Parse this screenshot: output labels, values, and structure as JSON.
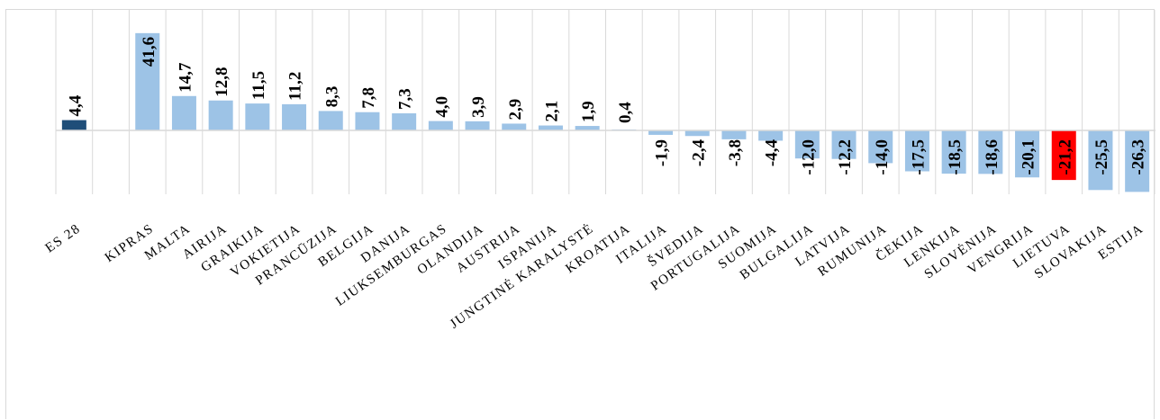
{
  "chart_data": {
    "type": "bar",
    "title": "",
    "xlabel": "",
    "ylabel": "",
    "ylim": [
      -30,
      45
    ],
    "grid": "vertical",
    "categories": [
      "ES 28",
      "",
      "KIPRAS",
      "MALTA",
      "AIRIJA",
      "GRAIKIJA",
      "VOKIETIJA",
      "PRANCŪZIJA",
      "BELGIJA",
      "DANIJA",
      "LIUKSEMBURGAS",
      "OLANDIJA",
      "AUSTRIJA",
      "ISPANIJA",
      "JUNGTINĖ KARALYSTĖ",
      "KROATIJA",
      "ITALIJA",
      "ŠVEDIJA",
      "PORTUGALIJA",
      "SUOMIJA",
      "BULGALIJA",
      "LATVIJA",
      "RUMUNIJA",
      "ČEKIJA",
      "LENKIJA",
      "SLOVĖNIJA",
      "VENGRIJA",
      "LIETUVA",
      "SLOVAKIJA",
      "ESTIJA"
    ],
    "values": [
      4.4,
      null,
      41.6,
      14.7,
      12.8,
      11.5,
      11.2,
      8.3,
      7.8,
      7.3,
      4.0,
      3.9,
      2.9,
      2.1,
      1.9,
      0.4,
      -1.9,
      -2.4,
      -3.8,
      -4.4,
      -12.0,
      -12.2,
      -14.0,
      -17.5,
      -18.5,
      -18.6,
      -20.1,
      -21.2,
      -25.5,
      -26.3
    ],
    "value_labels": [
      "4,4",
      "",
      "41,6",
      "14,7",
      "12,8",
      "11,5",
      "11,2",
      "8,3",
      "7,8",
      "7,3",
      "4,0",
      "3,9",
      "2,9",
      "2,1",
      "1,9",
      "0,4",
      "-1,9",
      "-2,4",
      "-3,8",
      "-4,4",
      "-12,0",
      "-12,2",
      "-14,0",
      "-17,5",
      "-18,5",
      "-18,6",
      "-20,1",
      "-21,2",
      "-25,5",
      "-26,3"
    ],
    "colors": {
      "default": "#9dc3e6",
      "aggregate": "#1f4e79",
      "highlight": "#ff0000",
      "grid": "#d9d9d9",
      "axis": "#d9d9d9"
    },
    "highlight_categories": {
      "ES 28": "aggregate",
      "LIETUVA": "highlight"
    }
  }
}
